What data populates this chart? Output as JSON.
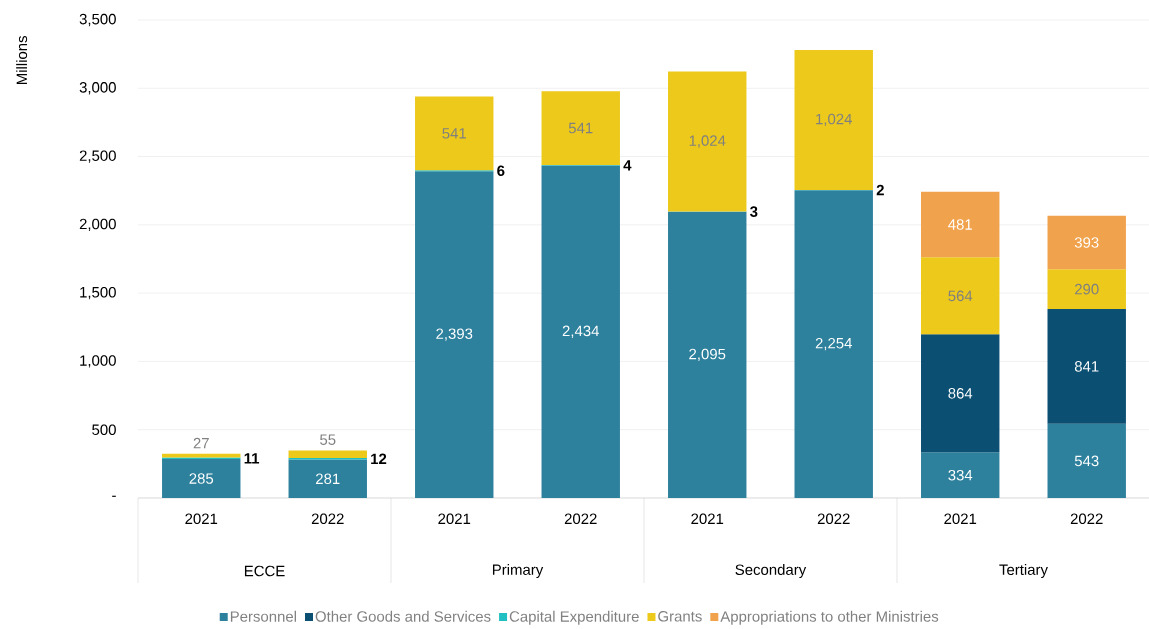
{
  "chart_data": {
    "type": "bar",
    "stacked": true,
    "ylabel": "Millions",
    "categories": [
      "2021",
      "2022",
      "2021",
      "2022",
      "2021",
      "2022",
      "2021",
      "2022"
    ],
    "annotations": [
      "ECCE",
      "Primary",
      "Secondary",
      "Tertiary"
    ],
    "series": [
      {
        "name": "Personnel",
        "color": "#2e819d",
        "values": [
          285,
          281,
          2393,
          2434,
          2095,
          2254,
          334,
          543
        ],
        "value_labels": [
          "285",
          "281",
          "2,393",
          "2,434",
          "2,095",
          "2,254",
          "334",
          "543"
        ]
      },
      {
        "name": "Other Goods and Services",
        "color": "#0b4f72",
        "values": [
          null,
          null,
          null,
          null,
          null,
          null,
          864,
          841
        ],
        "value_labels": [
          null,
          null,
          null,
          null,
          null,
          null,
          "864",
          "841"
        ]
      },
      {
        "name": "Capital Expenditure",
        "color": "#1fbfc2",
        "values": [
          11,
          12,
          6,
          4,
          3,
          2,
          null,
          null
        ],
        "value_labels": [
          "11",
          "12",
          "6",
          "4",
          "3",
          "2",
          null,
          null
        ]
      },
      {
        "name": "Grants",
        "color": "#ecc91a",
        "values": [
          27,
          55,
          541,
          541,
          1024,
          1024,
          564,
          290
        ],
        "value_labels": [
          "27",
          "55",
          "541",
          "541",
          "1,024",
          "1,024",
          "564",
          "290"
        ]
      },
      {
        "name": "Appropriations to other Ministries",
        "color": "#f1a24c",
        "values": [
          null,
          null,
          null,
          null,
          null,
          null,
          481,
          393
        ],
        "value_labels": [
          null,
          null,
          null,
          null,
          null,
          null,
          "481",
          "393"
        ]
      }
    ],
    "ylim": [
      0,
      3500
    ],
    "yticks": [
      {
        "value": 0,
        "label": "-"
      },
      {
        "value": 500,
        "label": "500"
      },
      {
        "value": 1000,
        "label": "1,000"
      },
      {
        "value": 1500,
        "label": "1,500"
      },
      {
        "value": 2000,
        "label": "2,000"
      },
      {
        "value": 2500,
        "label": "2,500"
      },
      {
        "value": 3000,
        "label": "3,000"
      },
      {
        "value": 3500,
        "label": "3,500"
      }
    ],
    "grid": "y",
    "legend": "bottom"
  }
}
